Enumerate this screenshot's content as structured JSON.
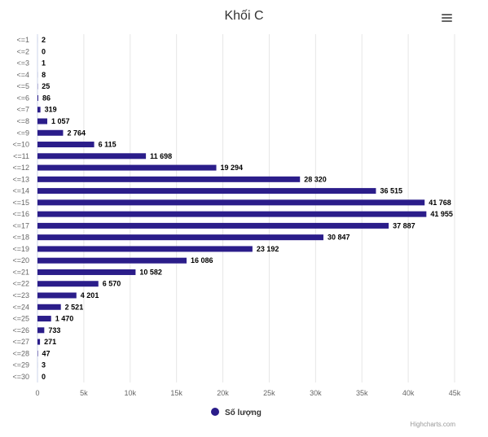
{
  "chart_data": {
    "type": "bar",
    "orientation": "horizontal",
    "title": "Khối C",
    "categories": [
      "<=1",
      "<=2",
      "<=3",
      "<=4",
      "<=5",
      "<=6",
      "<=7",
      "<=8",
      "<=9",
      "<=10",
      "<=11",
      "<=12",
      "<=13",
      "<=14",
      "<=15",
      "<=16",
      "<=17",
      "<=18",
      "<=19",
      "<=20",
      "<=21",
      "<=22",
      "<=23",
      "<=24",
      "<=25",
      "<=26",
      "<=27",
      "<=28",
      "<=29",
      "<=30"
    ],
    "series": [
      {
        "name": "Số lượng",
        "color": "#2b1d8a",
        "values": [
          2,
          0,
          1,
          8,
          25,
          86,
          319,
          1057,
          2764,
          6115,
          11698,
          19294,
          28320,
          36515,
          41768,
          41955,
          37887,
          30847,
          23192,
          16086,
          10582,
          6570,
          4201,
          2521,
          1470,
          733,
          271,
          47,
          3,
          0
        ],
        "labels": [
          "2",
          "0",
          "1",
          "8",
          "25",
          "86",
          "319",
          "1 057",
          "2 764",
          "6 115",
          "11 698",
          "19 294",
          "28 320",
          "36 515",
          "41 768",
          "41 955",
          "37 887",
          "30 847",
          "23 192",
          "16 086",
          "10 582",
          "6 570",
          "4 201",
          "2 521",
          "1 470",
          "733",
          "271",
          "47",
          "3",
          "0"
        ]
      }
    ],
    "value_axis": {
      "min": 0,
      "max": 45000,
      "ticks": [
        0,
        5000,
        10000,
        15000,
        20000,
        25000,
        30000,
        35000,
        40000,
        45000
      ],
      "tick_labels": [
        "0",
        "5k",
        "10k",
        "15k",
        "20k",
        "25k",
        "30k",
        "35k",
        "40k",
        "45k"
      ]
    },
    "grid": true,
    "legend": "bottom-center",
    "credits": "Highcharts.com",
    "colors": {
      "bar": "#2b1d8a",
      "grid": "#e6e6e6",
      "axis_text": "#666666",
      "title": "#333333",
      "label": "#000000"
    }
  }
}
